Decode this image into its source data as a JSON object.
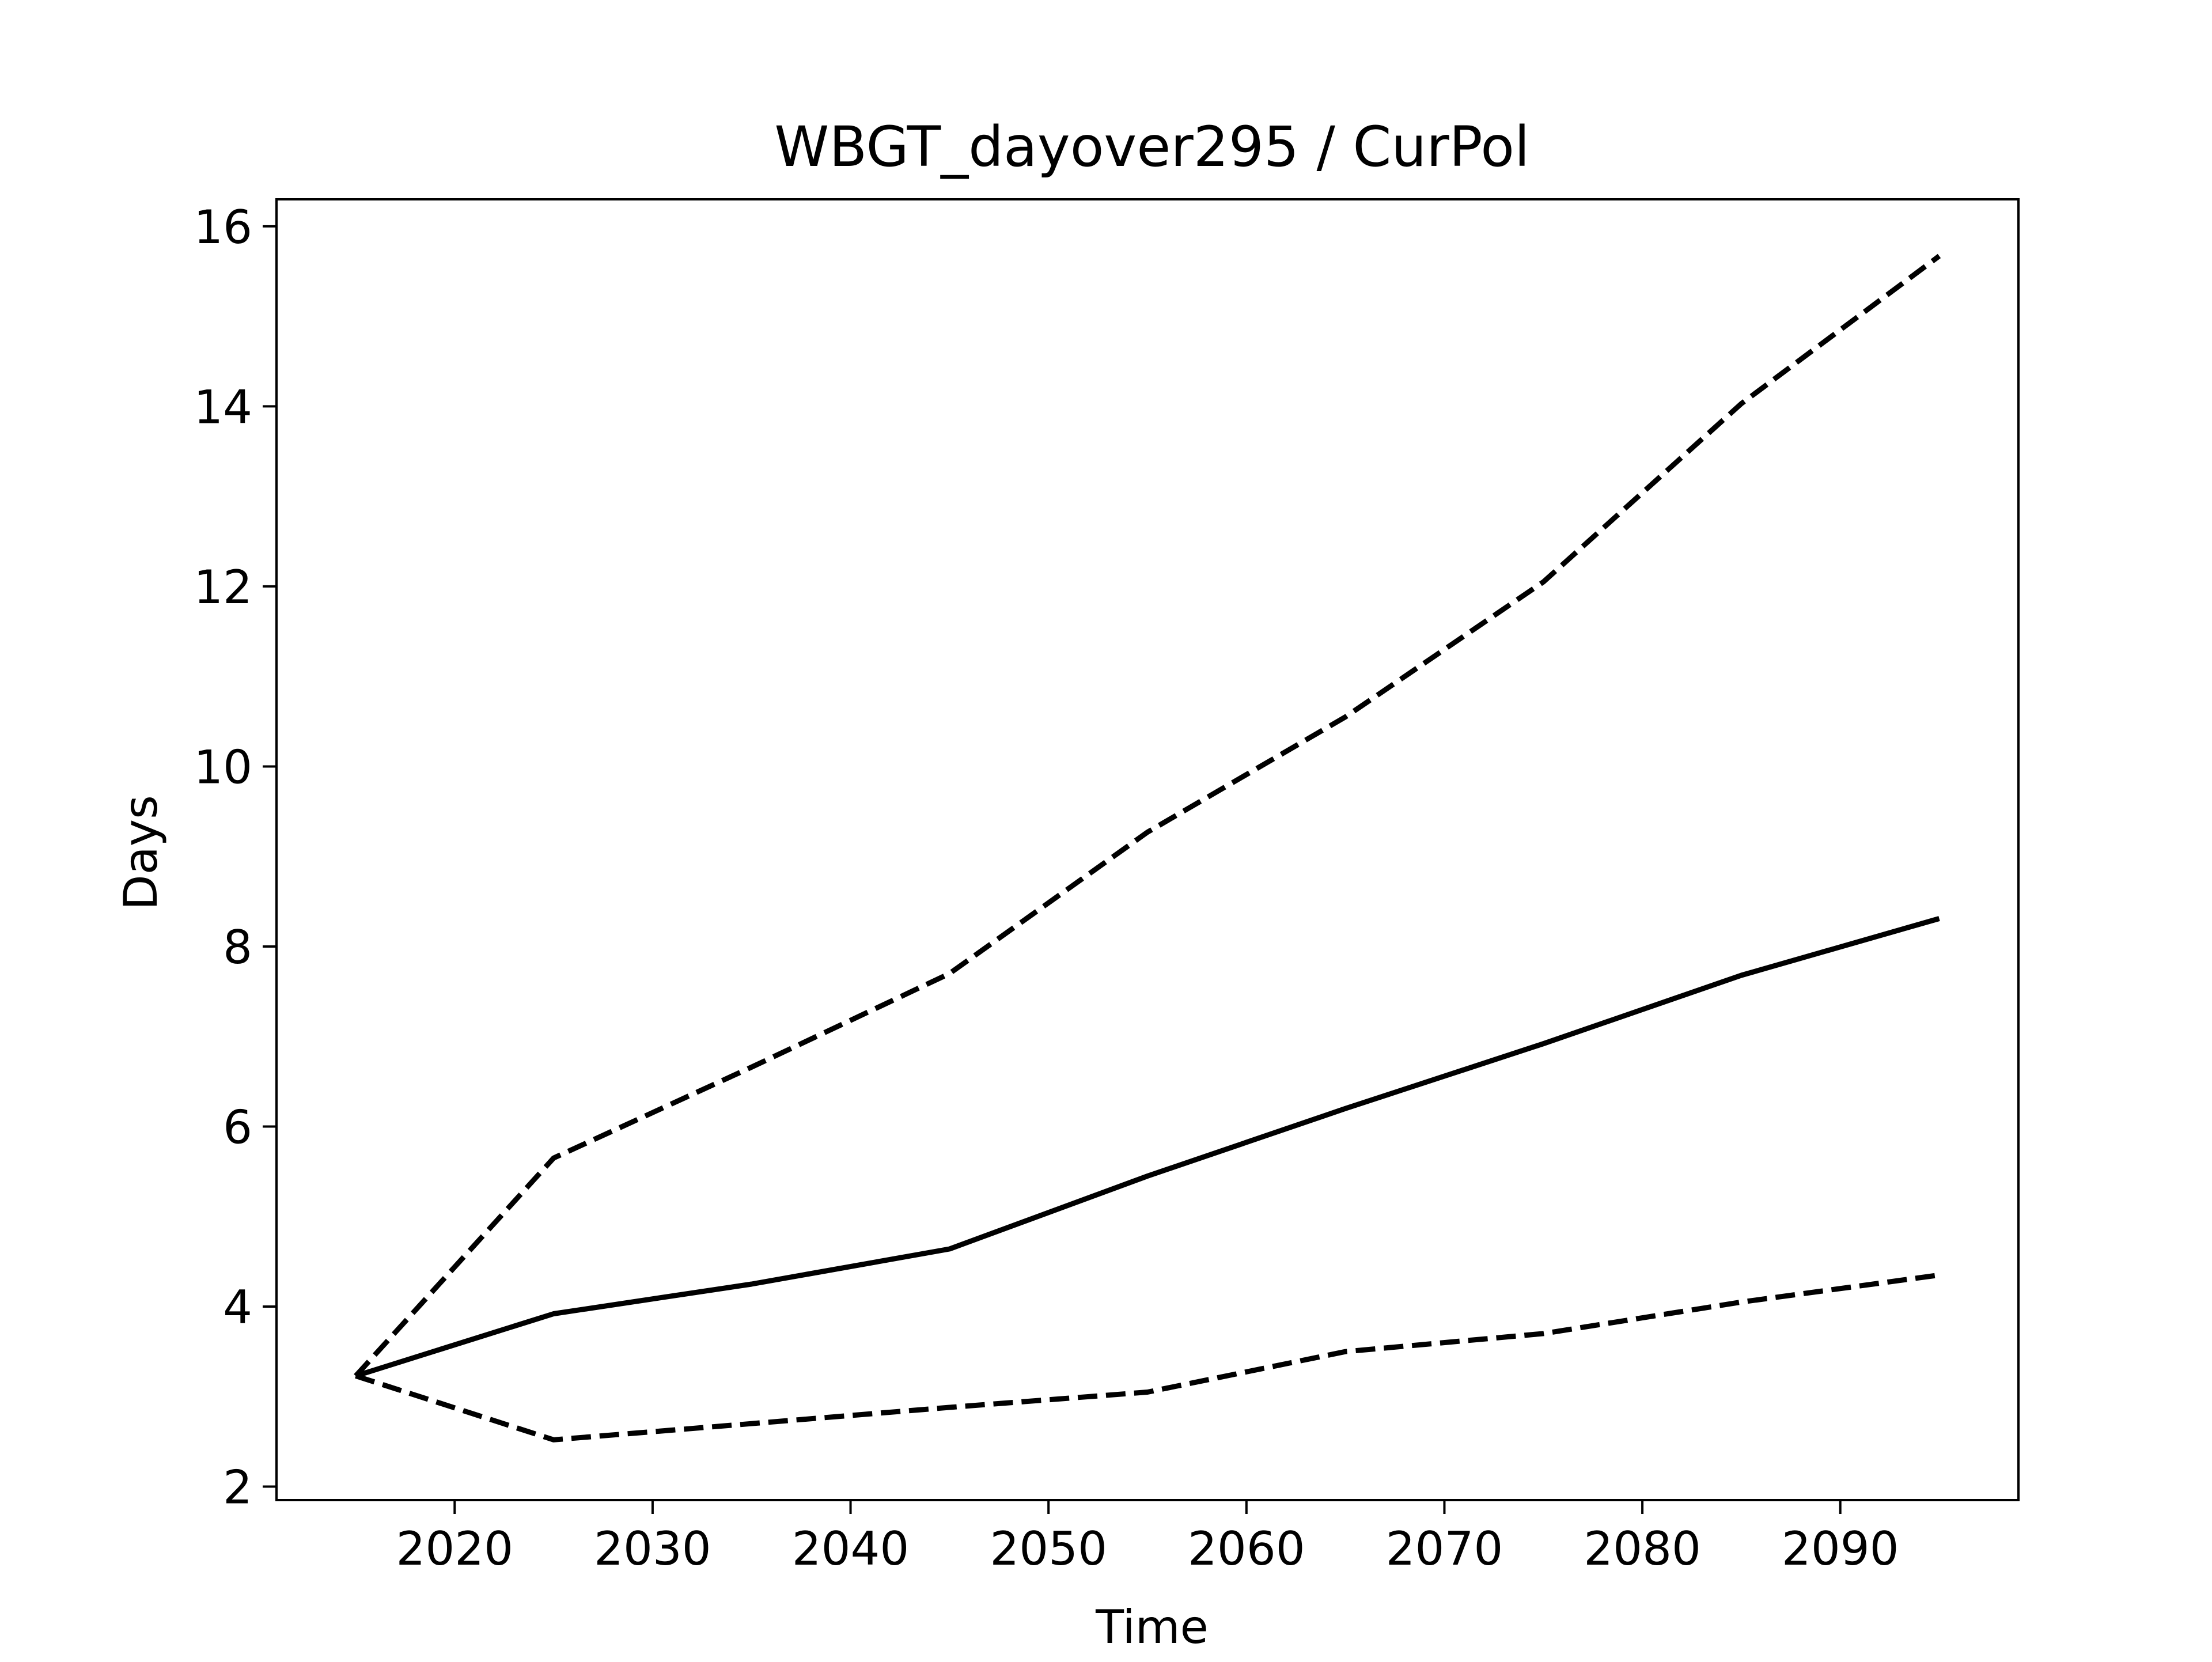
{
  "chart_data": {
    "type": "line",
    "title": "WBGT_dayover295 / CurPol",
    "xlabel": "Time",
    "ylabel": "Days",
    "xlim": [
      2011,
      2099
    ],
    "ylim": [
      1.85,
      16.3
    ],
    "xticks": [
      2020,
      2030,
      2040,
      2050,
      2060,
      2070,
      2080,
      2090
    ],
    "yticks": [
      2,
      4,
      6,
      8,
      10,
      12,
      14,
      16
    ],
    "grid": false,
    "legend": "none",
    "x": [
      2015,
      2025,
      2035,
      2045,
      2055,
      2065,
      2075,
      2085,
      2095
    ],
    "series": [
      {
        "style": "solid",
        "color": "#000000",
        "values": [
          3.23,
          3.92,
          4.25,
          4.64,
          5.45,
          6.2,
          6.92,
          7.68,
          8.31
        ]
      },
      {
        "style": "dashed",
        "color": "#000000",
        "values": [
          3.23,
          5.65,
          6.66,
          7.7,
          9.27,
          10.55,
          12.05,
          14.03,
          15.67
        ]
      },
      {
        "style": "dashed",
        "color": "#000000",
        "values": [
          3.23,
          2.52,
          2.7,
          2.88,
          3.05,
          3.5,
          3.7,
          4.05,
          4.35
        ]
      }
    ]
  }
}
